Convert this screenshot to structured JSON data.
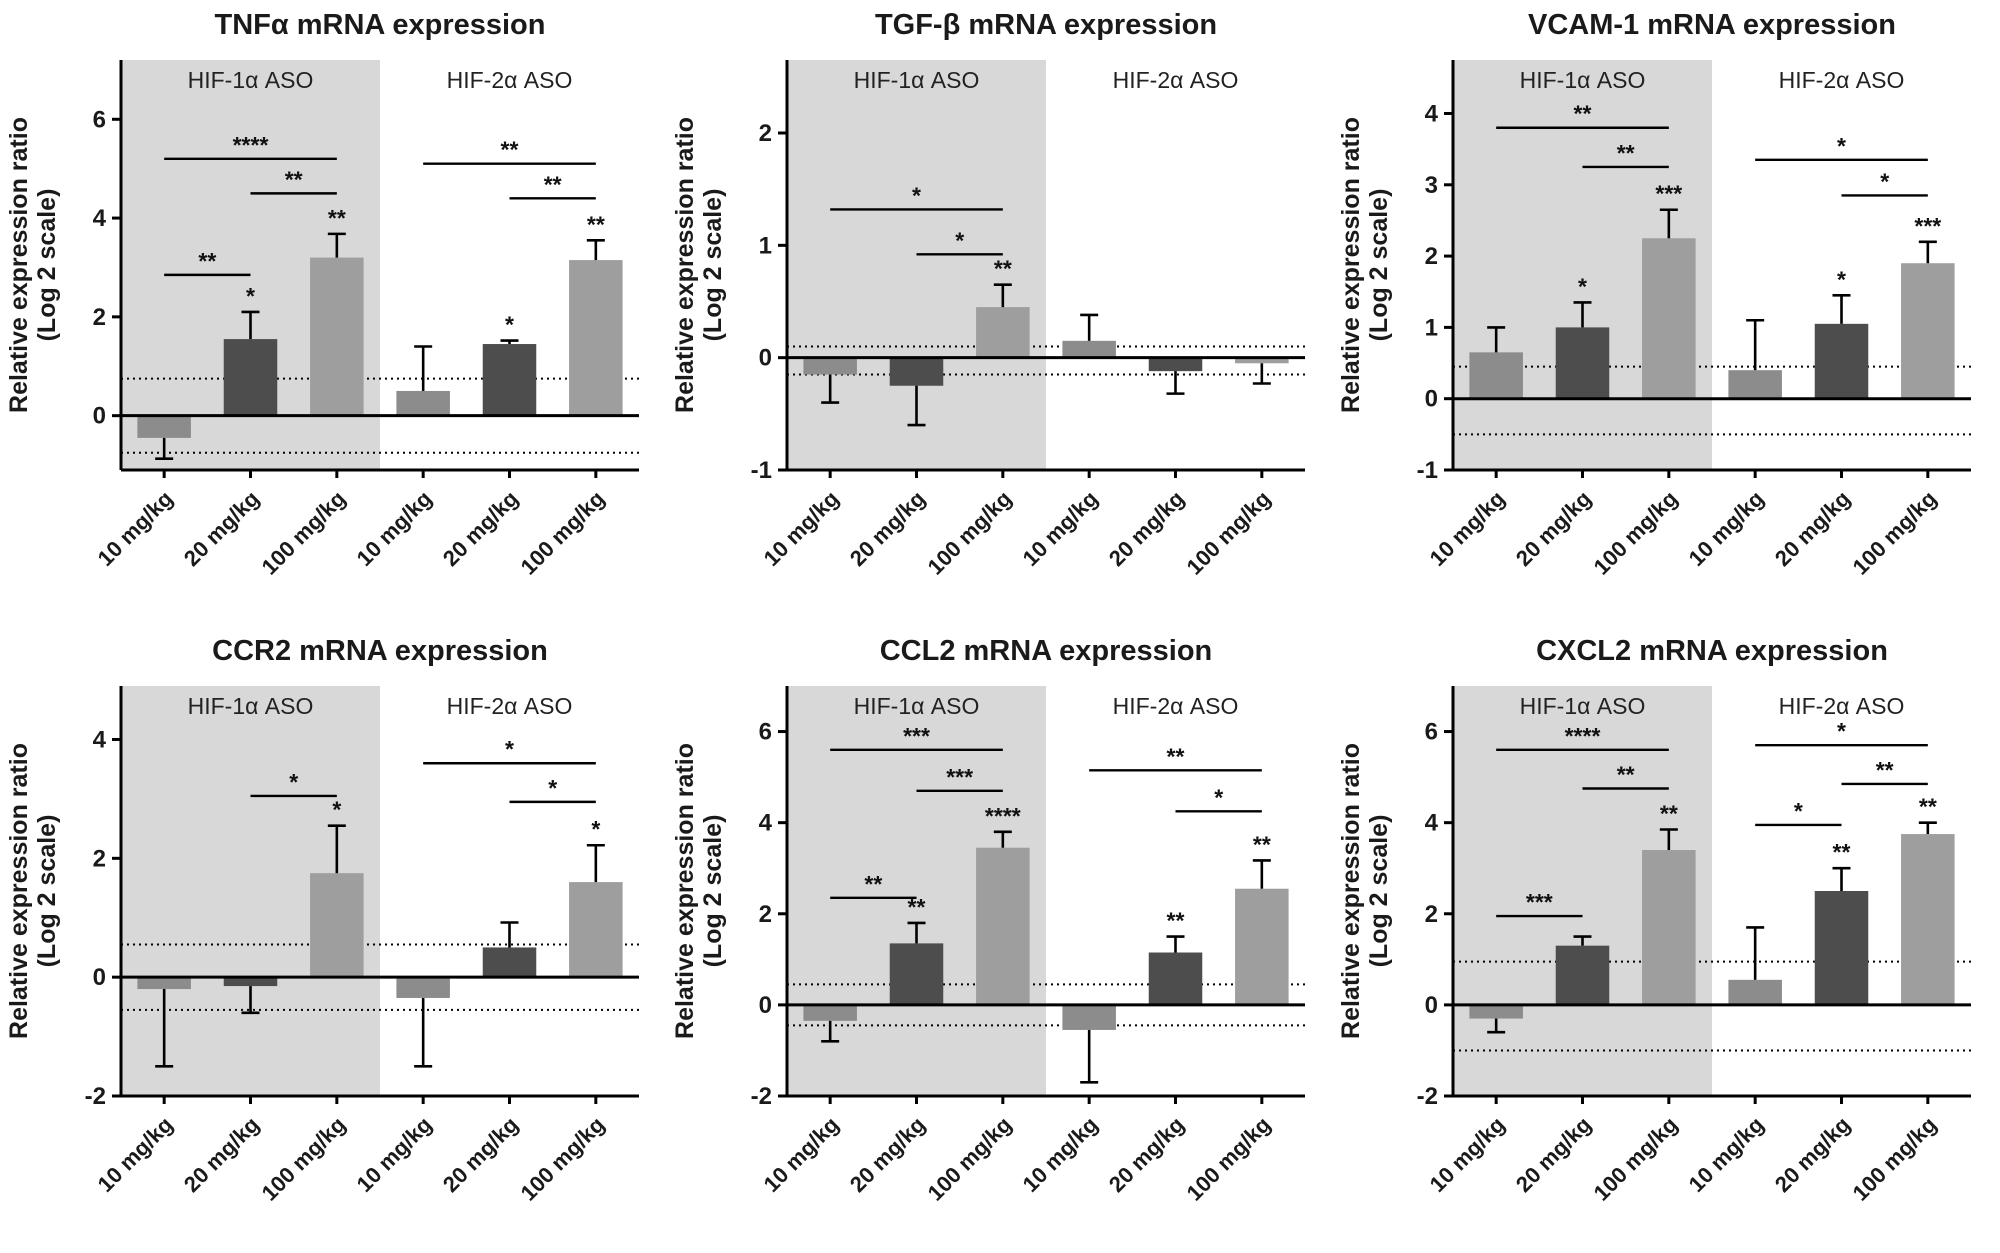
{
  "figure": {
    "background": "#ffffff",
    "shade_color": "#d8d8d8",
    "bar_colors": [
      "#8c8c8c",
      "#4d4d4d",
      "#9e9e9e"
    ],
    "ylabel_lines": [
      "Relative expression ratio",
      "(Log 2 scale)"
    ],
    "group_labels": [
      "HIF-1α ASO",
      "HIF-2α ASO"
    ],
    "dose_labels": [
      "10 mg/kg",
      "20 mg/kg",
      "100 mg/kg"
    ]
  },
  "chart_data": [
    {
      "type": "bar",
      "title": "TNFα mRNA expression",
      "ylabel": "Relative expression ratio (Log 2 scale)",
      "ylim": [
        -1.1,
        7.2
      ],
      "yticks": [
        0,
        2,
        4,
        6
      ],
      "dotted_lines": [
        0.75,
        -0.75
      ],
      "groups": [
        {
          "label": "HIF-1α ASO",
          "shaded": true,
          "categories": [
            "10 mg/kg",
            "20 mg/kg",
            "100 mg/kg"
          ],
          "values": [
            -0.45,
            1.55,
            3.2
          ],
          "errors": [
            0.42,
            0.55,
            0.48
          ],
          "sig_above_bars": [
            "",
            "*",
            "**"
          ]
        },
        {
          "label": "HIF-2α ASO",
          "shaded": false,
          "categories": [
            "10 mg/kg",
            "20 mg/kg",
            "100 mg/kg"
          ],
          "values": [
            0.5,
            1.45,
            3.15
          ],
          "errors": [
            0.9,
            0.07,
            0.4
          ],
          "sig_above_bars": [
            "",
            "*",
            "**"
          ]
        }
      ],
      "sig_brackets": [
        {
          "bars": [
            0,
            1
          ],
          "label": "**",
          "y": 2.85
        },
        {
          "bars": [
            1,
            2
          ],
          "label": "**",
          "y": 4.5
        },
        {
          "bars": [
            0,
            2
          ],
          "label": "****",
          "y": 5.2
        },
        {
          "bars": [
            4,
            5
          ],
          "label": "**",
          "y": 4.4
        },
        {
          "bars": [
            3,
            5
          ],
          "label": "**",
          "y": 5.1
        }
      ]
    },
    {
      "type": "bar",
      "title": "TGF-β mRNA expression",
      "ylabel": "Relative expression ratio (Log 2 scale)",
      "ylim": [
        -1.0,
        2.65
      ],
      "yticks": [
        -1,
        0,
        1,
        2
      ],
      "dotted_lines": [
        0.1,
        -0.15
      ],
      "groups": [
        {
          "label": "HIF-1α ASO",
          "shaded": true,
          "categories": [
            "10 mg/kg",
            "20 mg/kg",
            "100 mg/kg"
          ],
          "values": [
            -0.15,
            -0.25,
            0.45
          ],
          "errors": [
            0.25,
            0.35,
            0.2
          ],
          "sig_above_bars": [
            "",
            "",
            "**"
          ]
        },
        {
          "label": "HIF-2α ASO",
          "shaded": false,
          "categories": [
            "10 mg/kg",
            "20 mg/kg",
            "100 mg/kg"
          ],
          "values": [
            0.15,
            -0.12,
            -0.05
          ],
          "errors": [
            0.23,
            0.2,
            0.18
          ],
          "sig_above_bars": [
            "",
            "",
            ""
          ]
        }
      ],
      "sig_brackets": [
        {
          "bars": [
            1,
            2
          ],
          "label": "*",
          "y": 0.92
        },
        {
          "bars": [
            0,
            2
          ],
          "label": "*",
          "y": 1.32
        }
      ]
    },
    {
      "type": "bar",
      "title": "VCAM-1 mRNA expression",
      "ylabel": "Relative expression ratio (Log 2 scale)",
      "ylim": [
        -1.0,
        4.75
      ],
      "yticks": [
        -1,
        0,
        1,
        2,
        3,
        4
      ],
      "dotted_lines": [
        0.45,
        -0.5
      ],
      "groups": [
        {
          "label": "HIF-1α ASO",
          "shaded": true,
          "categories": [
            "10 mg/kg",
            "20 mg/kg",
            "100 mg/kg"
          ],
          "values": [
            0.65,
            1.0,
            2.25
          ],
          "errors": [
            0.35,
            0.35,
            0.4
          ],
          "sig_above_bars": [
            "",
            "*",
            "***"
          ]
        },
        {
          "label": "HIF-2α ASO",
          "shaded": false,
          "categories": [
            "10 mg/kg",
            "20 mg/kg",
            "100 mg/kg"
          ],
          "values": [
            0.4,
            1.05,
            1.9
          ],
          "errors": [
            0.7,
            0.4,
            0.3
          ],
          "sig_above_bars": [
            "",
            "*",
            "***"
          ]
        }
      ],
      "sig_brackets": [
        {
          "bars": [
            1,
            2
          ],
          "label": "**",
          "y": 3.25
        },
        {
          "bars": [
            0,
            2
          ],
          "label": "**",
          "y": 3.8
        },
        {
          "bars": [
            4,
            5
          ],
          "label": "*",
          "y": 2.85
        },
        {
          "bars": [
            3,
            5
          ],
          "label": "*",
          "y": 3.35
        }
      ]
    },
    {
      "type": "bar",
      "title": "CCR2 mRNA expression",
      "ylabel": "Relative expression ratio (Log 2 scale)",
      "ylim": [
        -2.0,
        4.9
      ],
      "yticks": [
        -2,
        0,
        2,
        4
      ],
      "dotted_lines": [
        0.55,
        -0.55
      ],
      "groups": [
        {
          "label": "HIF-1α ASO",
          "shaded": true,
          "categories": [
            "10 mg/kg",
            "20 mg/kg",
            "100 mg/kg"
          ],
          "values": [
            -0.2,
            -0.15,
            1.75
          ],
          "errors": [
            1.3,
            0.45,
            0.8
          ],
          "sig_above_bars": [
            "",
            "",
            "*"
          ]
        },
        {
          "label": "HIF-2α ASO",
          "shaded": false,
          "categories": [
            "10 mg/kg",
            "20 mg/kg",
            "100 mg/kg"
          ],
          "values": [
            -0.35,
            0.5,
            1.6
          ],
          "errors": [
            1.15,
            0.42,
            0.62
          ],
          "sig_above_bars": [
            "",
            "",
            "*"
          ]
        }
      ],
      "sig_brackets": [
        {
          "bars": [
            1,
            2
          ],
          "label": "*",
          "y": 3.05
        },
        {
          "bars": [
            4,
            5
          ],
          "label": "*",
          "y": 2.95
        },
        {
          "bars": [
            3,
            5
          ],
          "label": "*",
          "y": 3.6
        }
      ]
    },
    {
      "type": "bar",
      "title": "CCL2 mRNA expression",
      "ylabel": "Relative expression ratio (Log 2 scale)",
      "ylim": [
        -2.0,
        7.0
      ],
      "yticks": [
        -2,
        0,
        2,
        4,
        6
      ],
      "dotted_lines": [
        0.45,
        -0.45
      ],
      "groups": [
        {
          "label": "HIF-1α ASO",
          "shaded": true,
          "categories": [
            "10 mg/kg",
            "20 mg/kg",
            "100 mg/kg"
          ],
          "values": [
            -0.35,
            1.35,
            3.45
          ],
          "errors": [
            0.45,
            0.45,
            0.35
          ],
          "sig_above_bars": [
            "",
            "**",
            "****"
          ]
        },
        {
          "label": "HIF-2α ASO",
          "shaded": false,
          "categories": [
            "10 mg/kg",
            "20 mg/kg",
            "100 mg/kg"
          ],
          "values": [
            -0.55,
            1.15,
            2.55
          ],
          "errors": [
            1.15,
            0.35,
            0.62
          ],
          "sig_above_bars": [
            "",
            "**",
            "**"
          ]
        }
      ],
      "sig_brackets": [
        {
          "bars": [
            0,
            1
          ],
          "label": "**",
          "y": 2.35
        },
        {
          "bars": [
            1,
            2
          ],
          "label": "***",
          "y": 4.7
        },
        {
          "bars": [
            0,
            2
          ],
          "label": "***",
          "y": 5.6
        },
        {
          "bars": [
            4,
            5
          ],
          "label": "*",
          "y": 4.25
        },
        {
          "bars": [
            3,
            5
          ],
          "label": "**",
          "y": 5.15
        }
      ]
    },
    {
      "type": "bar",
      "title": "CXCL2 mRNA expression",
      "ylabel": "Relative expression ratio (Log 2 scale)",
      "ylim": [
        -2.0,
        7.0
      ],
      "yticks": [
        -2,
        0,
        2,
        4,
        6
      ],
      "dotted_lines": [
        0.95,
        -1.0
      ],
      "groups": [
        {
          "label": "HIF-1α ASO",
          "shaded": true,
          "categories": [
            "10 mg/kg",
            "20 mg/kg",
            "100 mg/kg"
          ],
          "values": [
            -0.3,
            1.3,
            3.4
          ],
          "errors": [
            0.3,
            0.2,
            0.45
          ],
          "sig_above_bars": [
            "",
            "",
            "**"
          ]
        },
        {
          "label": "HIF-2α ASO",
          "shaded": false,
          "categories": [
            "10 mg/kg",
            "20 mg/kg",
            "100 mg/kg"
          ],
          "values": [
            0.55,
            2.5,
            3.75
          ],
          "errors": [
            1.15,
            0.5,
            0.25
          ],
          "sig_above_bars": [
            "",
            "**",
            "**"
          ]
        }
      ],
      "sig_brackets": [
        {
          "bars": [
            0,
            1
          ],
          "label": "***",
          "y": 1.95
        },
        {
          "bars": [
            1,
            2
          ],
          "label": "**",
          "y": 4.75
        },
        {
          "bars": [
            0,
            2
          ],
          "label": "****",
          "y": 5.6
        },
        {
          "bars": [
            3,
            4
          ],
          "label": "*",
          "y": 3.95
        },
        {
          "bars": [
            4,
            5
          ],
          "label": "**",
          "y": 4.85
        },
        {
          "bars": [
            3,
            5
          ],
          "label": "*",
          "y": 5.7
        }
      ]
    }
  ]
}
